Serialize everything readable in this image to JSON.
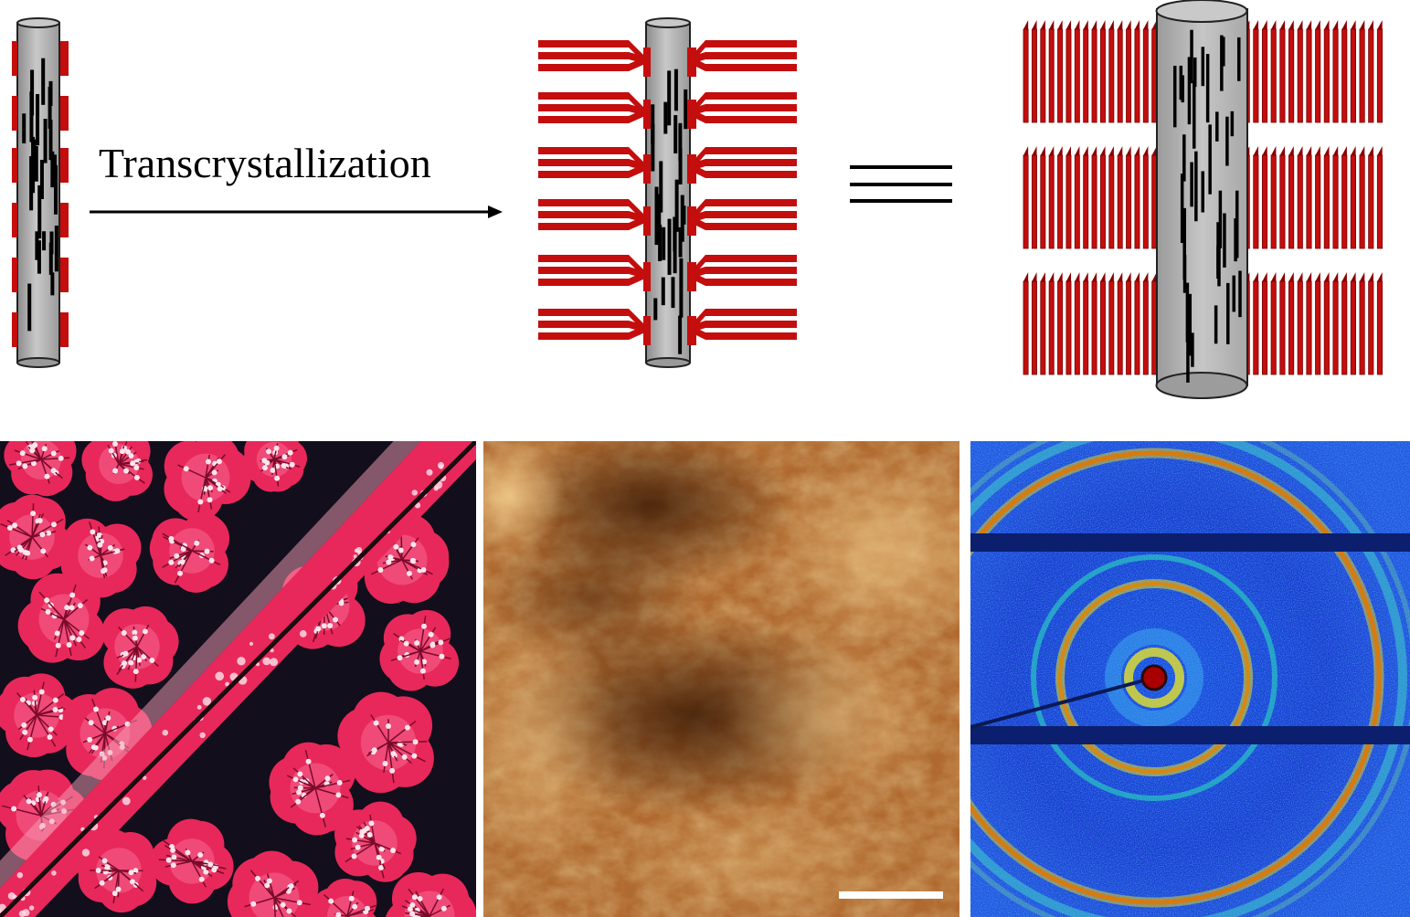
{
  "figure": {
    "process_label": "Transcrystallization",
    "equivalence_symbol": "≡"
  },
  "colors": {
    "lamella_red": "#c40d0d",
    "lamella_side": "#8a0000",
    "fiber_gray": "#b5b5b5",
    "fiber_stripe": "#000000",
    "pom_background": "#120e1c",
    "pom_crystal": "#e8285a",
    "afm_dark": "#5a2a0a",
    "afm_light": "#f0c27a",
    "waxs_background": "#1a3ed0",
    "waxs_ring": "#d82000",
    "waxs_beamstop": "#0a1a66"
  },
  "panels": [
    {
      "name": "polarized optical micrograph",
      "content": "transcrystalline layer along fiber with spherulites"
    },
    {
      "name": "AFM height image",
      "content": "lamellar morphology with scale bar"
    },
    {
      "name": "2D WAXS pattern",
      "content": "concentric diffraction rings with beam stop"
    }
  ]
}
